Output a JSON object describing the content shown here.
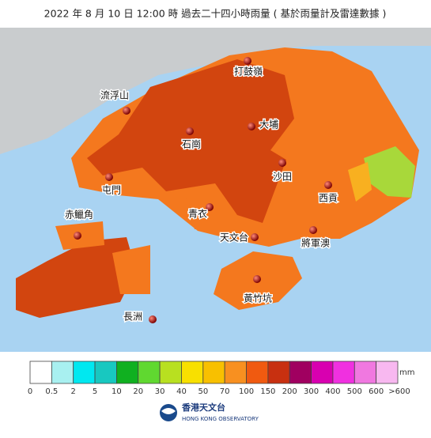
{
  "header": {
    "title": "2022 年 8 月 10 日 12:00 時 過去二十四小時雨量 ( 基於雨量計及雷達數據 )"
  },
  "stations": [
    {
      "name": "打鼓嶺"
    },
    {
      "name": "流浮山"
    },
    {
      "name": "大埔"
    },
    {
      "name": "石崗"
    },
    {
      "name": "屯門"
    },
    {
      "name": "沙田"
    },
    {
      "name": "西貢"
    },
    {
      "name": "青衣"
    },
    {
      "name": "赤鱲角"
    },
    {
      "name": "天文台"
    },
    {
      "name": "將軍澳"
    },
    {
      "name": "黃竹坑"
    },
    {
      "name": "長洲"
    }
  ],
  "legend": {
    "unit": "mm",
    "colors": [
      "#ffffff",
      "#a8f0f0",
      "#00e8f0",
      "#18c8c0",
      "#10b020",
      "#60d830",
      "#b8e020",
      "#f8e000",
      "#f8c000",
      "#f89020",
      "#f05a10",
      "#c83010",
      "#a00060",
      "#d800b0",
      "#f030e0",
      "#f078e0",
      "#f8b8f0"
    ],
    "ticks": [
      "0",
      "0.5",
      "2",
      "5",
      "10",
      "20",
      "30",
      "40",
      "50",
      "70",
      "100",
      "150",
      "200",
      "300",
      "400",
      "500",
      "600"
    ],
    "last_tick": ">600"
  },
  "logo": {
    "name_zh": "香港天文台",
    "name_en": "HONG KONG OBSERVATORY"
  }
}
